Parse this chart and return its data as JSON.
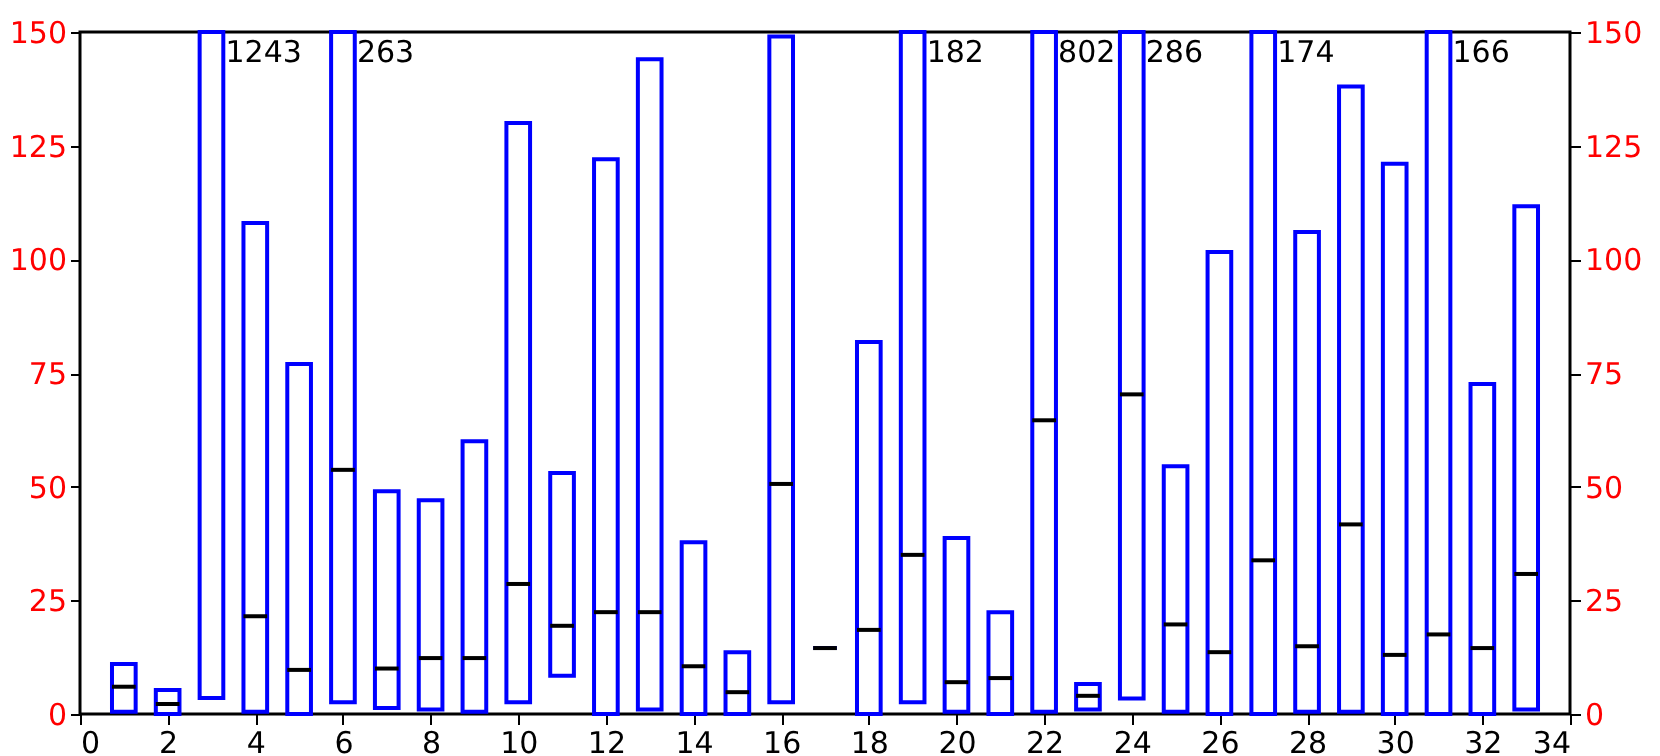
{
  "chart_data": {
    "type": "box",
    "x": [
      1,
      2,
      3,
      4,
      5,
      6,
      7,
      8,
      9,
      10,
      11,
      12,
      13,
      14,
      15,
      16,
      17,
      18,
      19,
      20,
      21,
      22,
      23,
      24,
      25,
      26,
      27,
      28,
      29,
      30,
      31,
      32,
      33
    ],
    "series": [
      {
        "color": "#0000ff",
        "boxes": [
          {
            "low": 0.5,
            "q1": 0.5,
            "median": 6,
            "q3": 11,
            "high": 11
          },
          {
            "low": 0,
            "q1": 0,
            "median": 2.2,
            "q3": 5.3,
            "high": 5.3
          },
          {
            "low": 3.5,
            "q1": 3.5,
            "q3": 150,
            "high": 150
          },
          {
            "low": 0.5,
            "q1": 0.5,
            "median": 21.5,
            "q3": 108,
            "high": 108
          },
          {
            "low": 0,
            "q1": 0,
            "median": 9.7,
            "q3": 77,
            "high": 77
          },
          {
            "low": 2.6,
            "q1": 2.6,
            "median": 53.7,
            "q3": 150,
            "high": 150
          },
          {
            "low": 1.3,
            "q1": 1.3,
            "median": 10,
            "q3": 49,
            "high": 49
          },
          {
            "low": 1,
            "q1": 1,
            "median": 12.3,
            "q3": 47,
            "high": 47
          },
          {
            "low": 0.5,
            "q1": 0.5,
            "median": 12.3,
            "q3": 60,
            "high": 60
          },
          {
            "low": 2.6,
            "q1": 2.6,
            "median": 28.6,
            "q3": 130,
            "high": 130
          },
          {
            "low": 8.4,
            "q1": 8.4,
            "median": 19.4,
            "q3": 53,
            "high": 53
          },
          {
            "low": 0,
            "q1": 0,
            "median": 22.4,
            "q3": 122,
            "high": 122
          },
          {
            "low": 1,
            "q1": 1,
            "median": 22.4,
            "q3": 144,
            "high": 144
          },
          {
            "low": 0,
            "q1": 0,
            "median": 10.5,
            "q3": 37.8,
            "high": 37.8
          },
          {
            "low": 0,
            "q1": 0,
            "median": 4.8,
            "q3": 13.6,
            "high": 13.6
          },
          {
            "low": 2.6,
            "q1": 2.6,
            "median": 50.6,
            "q3": 149,
            "high": 149
          },
          {
            "low": 14.5,
            "q1": 14.5,
            "median": 14.5,
            "q3": 14.5,
            "high": 14.5
          },
          {
            "low": 0,
            "q1": 0,
            "median": 18.5,
            "q3": 81.8,
            "high": 81.8
          },
          {
            "low": 2.6,
            "q1": 2.6,
            "median": 35,
            "q3": 150,
            "high": 150
          },
          {
            "low": 0.5,
            "q1": 0.5,
            "median": 7,
            "q3": 38.7,
            "high": 38.7
          },
          {
            "low": 0,
            "q1": 0,
            "median": 7.9,
            "q3": 22.4,
            "high": 22.4
          },
          {
            "low": 0.5,
            "q1": 0.5,
            "median": 64.6,
            "q3": 150,
            "high": 150
          },
          {
            "low": 1,
            "q1": 1,
            "median": 4,
            "q3": 6.6,
            "high": 6.6
          },
          {
            "low": 3.4,
            "q1": 3.4,
            "median": 70.3,
            "q3": 150,
            "high": 150
          },
          {
            "low": 0.5,
            "q1": 0.5,
            "median": 19.7,
            "q3": 54.5,
            "high": 54.5
          },
          {
            "low": 0,
            "q1": 0,
            "median": 13.6,
            "q3": 101.6,
            "high": 101.6
          },
          {
            "low": 0,
            "q1": 0,
            "median": 33.8,
            "q3": 150,
            "high": 150
          },
          {
            "low": 0.5,
            "q1": 0.5,
            "median": 14.9,
            "q3": 106,
            "high": 106
          },
          {
            "low": 0.5,
            "q1": 0.5,
            "median": 41.7,
            "q3": 138,
            "high": 138
          },
          {
            "low": 0,
            "q1": 0,
            "median": 13,
            "q3": 121,
            "high": 121
          },
          {
            "low": 0,
            "q1": 0,
            "median": 17.5,
            "q3": 150,
            "high": 150
          },
          {
            "low": 0,
            "q1": 0,
            "median": 14.5,
            "q3": 72.6,
            "high": 72.6
          },
          {
            "low": 1,
            "q1": 1,
            "median": 30.8,
            "q3": 111.7,
            "high": 111.7
          }
        ]
      }
    ],
    "annotations": [
      {
        "text": "1243",
        "x": 3,
        "y": 150
      },
      {
        "text": "263",
        "x": 6,
        "y": 150
      },
      {
        "text": "182",
        "x": 19,
        "y": 150
      },
      {
        "text": "802",
        "x": 22,
        "y": 150
      },
      {
        "text": "286",
        "x": 24,
        "y": 150
      },
      {
        "text": "174",
        "x": 27,
        "y": 150
      },
      {
        "text": "166",
        "x": 31,
        "y": 150
      }
    ],
    "xlim": [
      0,
      34
    ],
    "xticks": [
      0,
      2,
      4,
      6,
      8,
      10,
      12,
      14,
      16,
      18,
      20,
      22,
      24,
      26,
      28,
      30,
      32,
      34
    ],
    "ylim": [
      0,
      150
    ],
    "yticks": [
      0,
      25,
      50,
      75,
      100,
      125,
      150
    ],
    "y2lim": [
      0,
      150
    ],
    "y2ticks": [
      0,
      25,
      50,
      75,
      100,
      125,
      150
    ],
    "grid": false
  }
}
